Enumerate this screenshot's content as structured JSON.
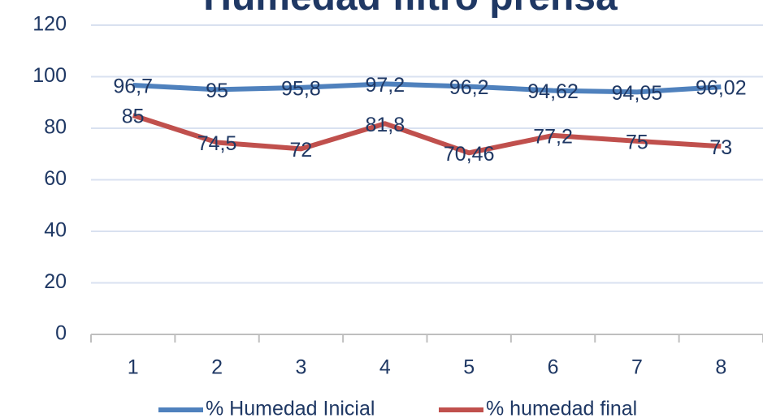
{
  "chart_data": {
    "type": "line",
    "title": "Humedad filtro prensa",
    "categories": [
      "1",
      "2",
      "3",
      "4",
      "5",
      "6",
      "7",
      "8"
    ],
    "series": [
      {
        "name": "% Humedad Inicial",
        "color": "#4f81bd",
        "values": [
          96.7,
          95,
          95.8,
          97.2,
          96.2,
          94.62,
          94.05,
          96.02
        ],
        "value_labels": [
          "96,7",
          "95",
          "95,8",
          "97,2",
          "96,2",
          "94,62",
          "94,05",
          "96,02"
        ]
      },
      {
        "name": "% humedad final",
        "color": "#c0504d",
        "values": [
          85,
          74.5,
          72,
          81.8,
          70.46,
          77.2,
          75,
          73
        ],
        "value_labels": [
          "85",
          "74,5",
          "72",
          "81,8",
          "70,46",
          "77,2",
          "75",
          "73"
        ]
      }
    ],
    "ylim": [
      0,
      120
    ],
    "yticks": [
      0,
      20,
      40,
      60,
      80,
      100,
      120
    ],
    "grid": true,
    "legend": "bottom"
  }
}
